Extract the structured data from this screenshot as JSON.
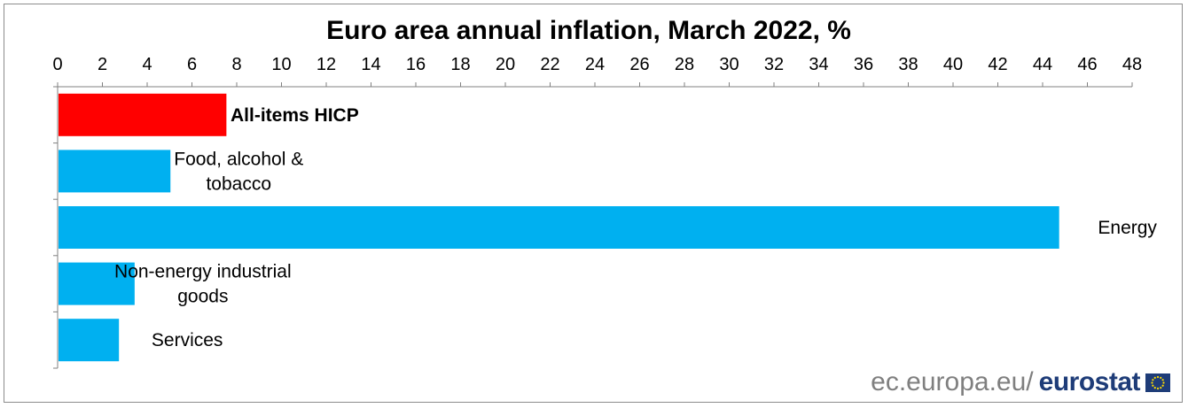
{
  "chart_data": {
    "type": "bar",
    "orientation": "horizontal",
    "title": "Euro area annual inflation, March 2022, %",
    "xlabel": "",
    "ylabel": "",
    "xlim": [
      0,
      48
    ],
    "x_ticks": [
      "0",
      "2",
      "4",
      "6",
      "8",
      "10",
      "12",
      "14",
      "16",
      "18",
      "20",
      "22",
      "24",
      "26",
      "28",
      "30",
      "32",
      "34",
      "36",
      "38",
      "40",
      "42",
      "44",
      "46",
      "48"
    ],
    "x_axis_position": "top",
    "grid": false,
    "legend": "none",
    "categories": [
      {
        "label_lines": [
          "All-items HICP"
        ],
        "bold": true
      },
      {
        "label_lines": [
          "Food, alcohol &",
          "tobacco"
        ],
        "bold": false
      },
      {
        "label_lines": [
          "Energy"
        ],
        "bold": false
      },
      {
        "label_lines": [
          "Non-energy industrial",
          "goods"
        ],
        "bold": false
      },
      {
        "label_lines": [
          "Services"
        ],
        "bold": false
      }
    ],
    "values": [
      7.5,
      5.0,
      44.7,
      3.4,
      2.7
    ],
    "bar_colors": [
      "#ff0000",
      "#00b0f0",
      "#00b0f0",
      "#00b0f0",
      "#00b0f0"
    ]
  },
  "footer": {
    "site": "ec.europa.eu/",
    "brand": "eurostat",
    "logo_icon": "eu-flag-icon"
  },
  "colors": {
    "axis": "#808080",
    "eu_blue": "#1e3c78",
    "eu_star": "#ffdd00"
  }
}
